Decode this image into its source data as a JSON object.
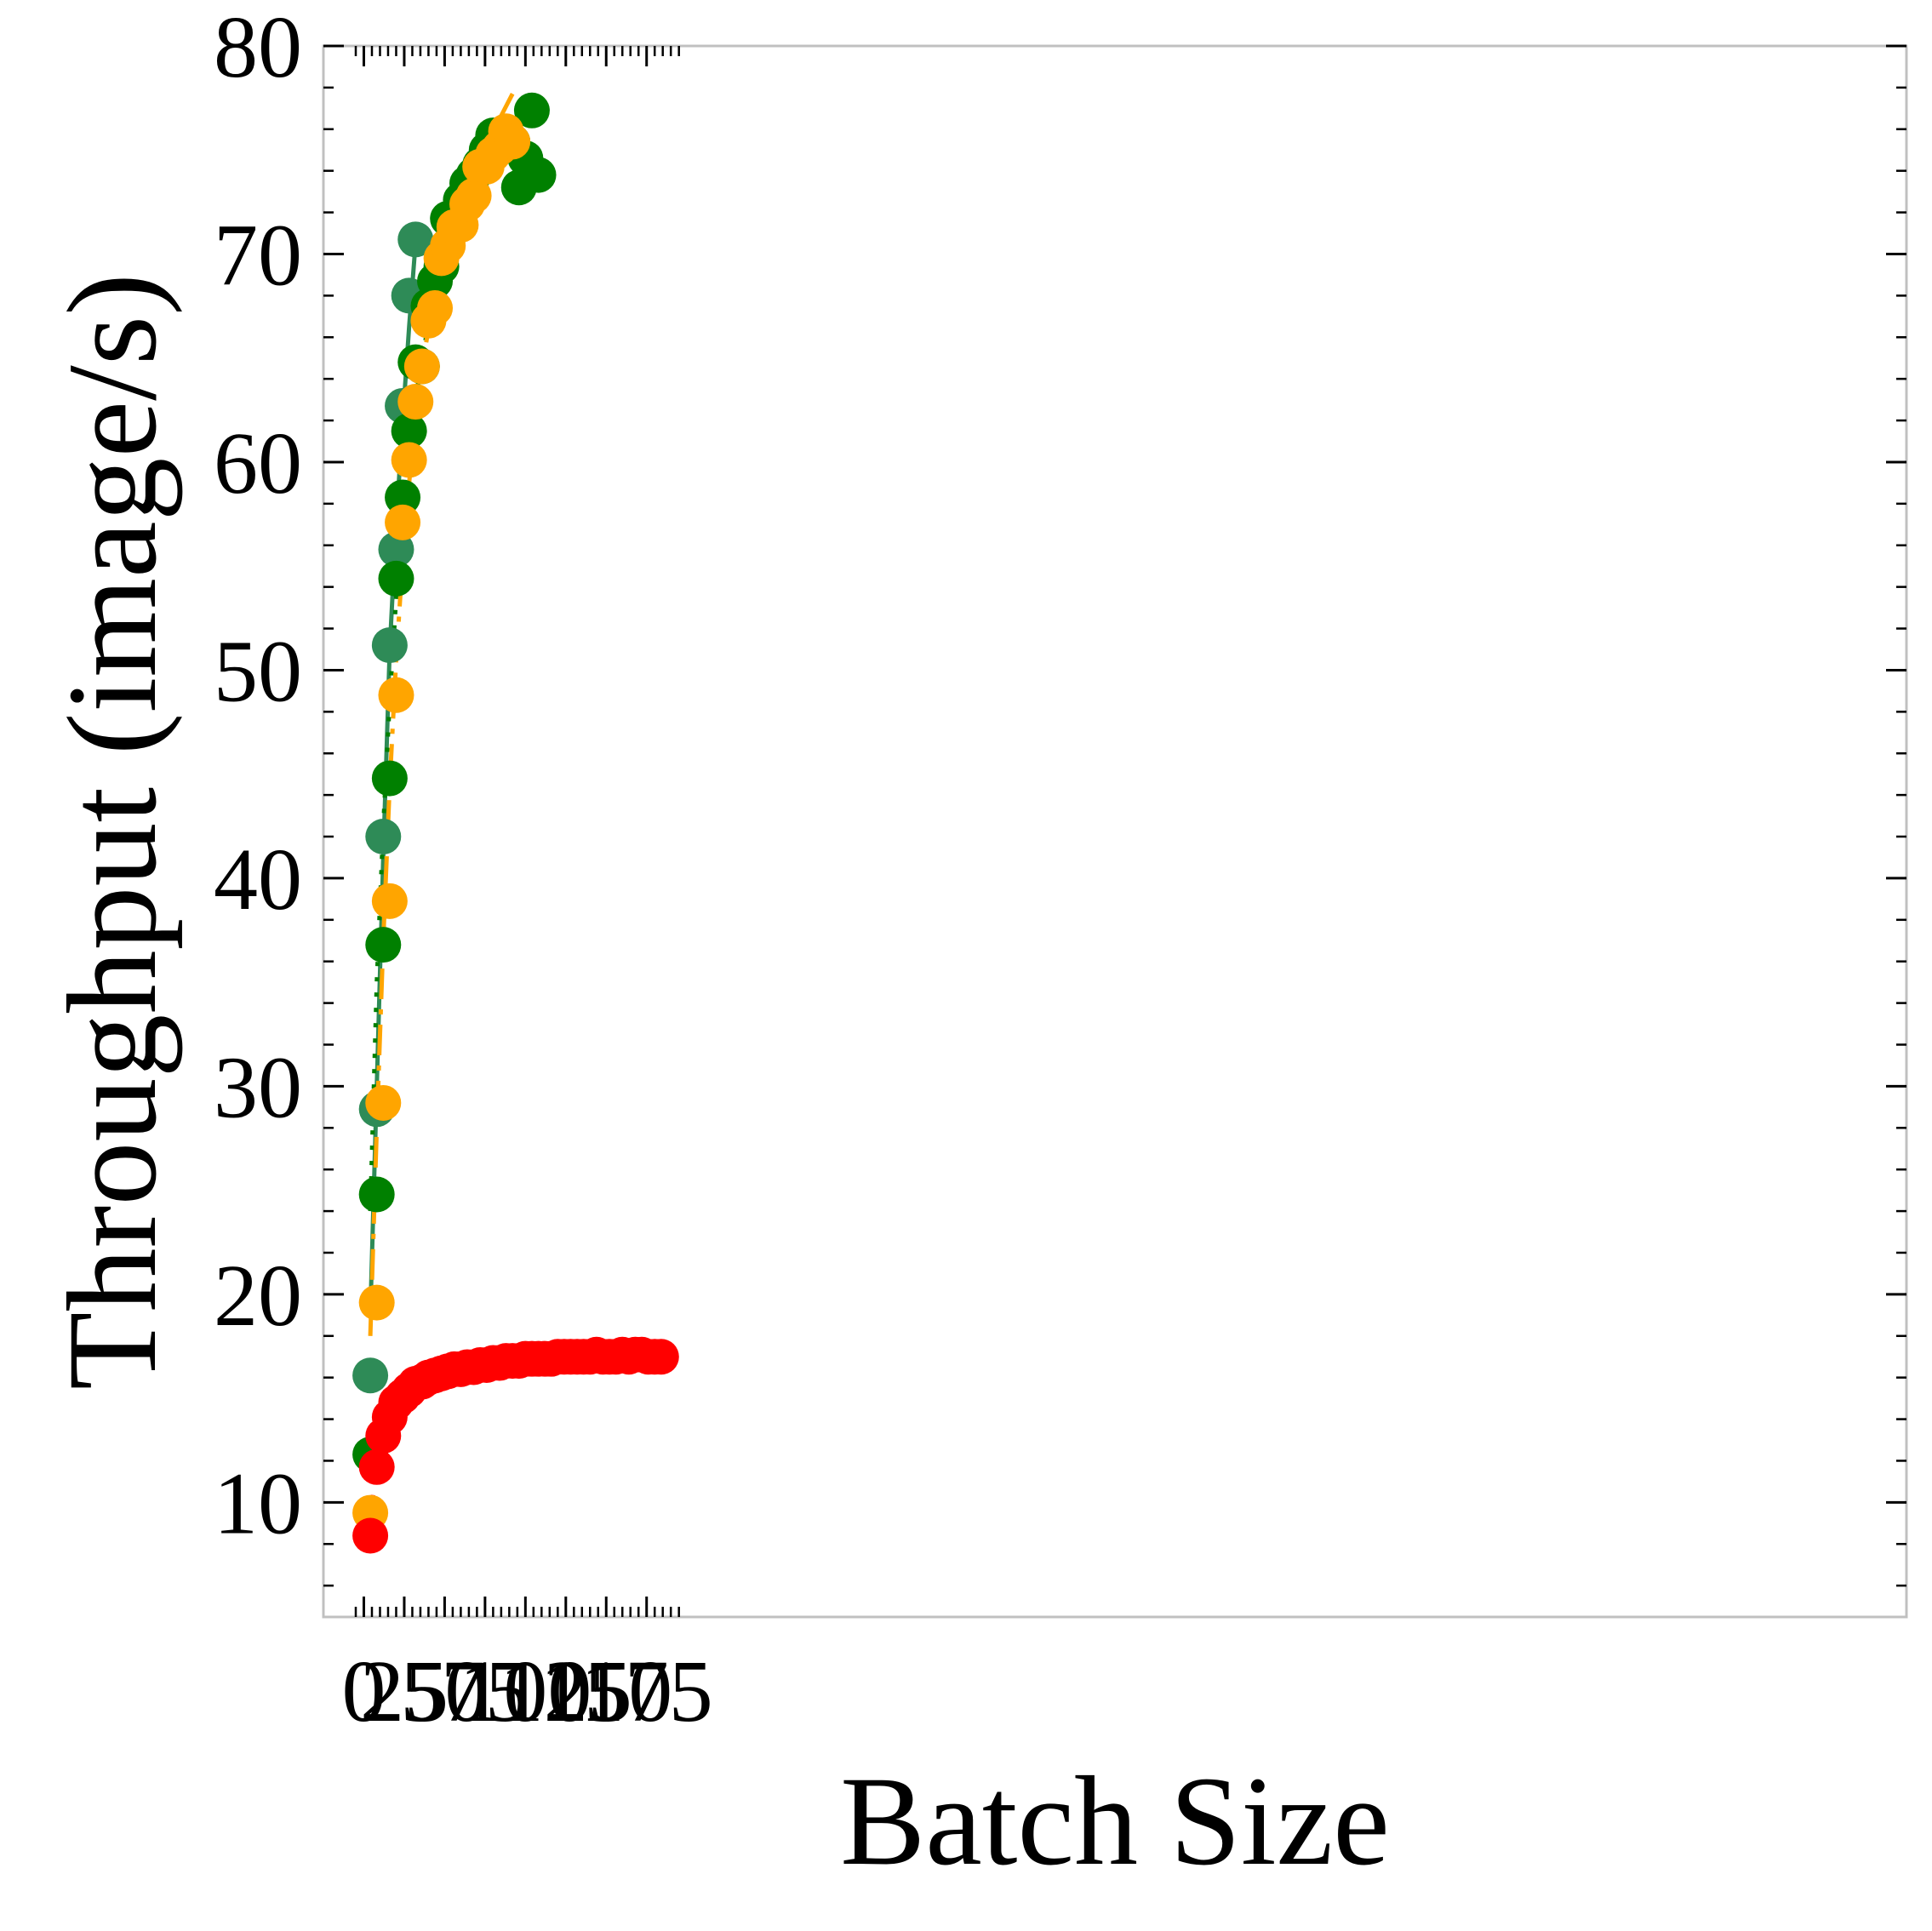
{
  "chart_data": {
    "type": "scatter",
    "title": "",
    "xlabel": "Batch Size",
    "ylabel": "Throughput (image/s)",
    "xlim": [
      -5,
      195
    ],
    "ylim": [
      5,
      81
    ],
    "xticks": [
      0,
      25,
      50,
      75,
      100,
      125,
      150,
      175
    ],
    "yticks": [
      10,
      20,
      30,
      40,
      50,
      60,
      70,
      80
    ],
    "minor_ticks": true,
    "ticks_direction": "in",
    "grid": false,
    "legend": "none",
    "series": [
      {
        "color": "#2e8b57",
        "marker": "circle",
        "points": [
          [
            4,
            16.1
          ],
          [
            8,
            28.9
          ],
          [
            12,
            42
          ],
          [
            16,
            51.2
          ],
          [
            20,
            55.8
          ],
          [
            24,
            62.7
          ],
          [
            28,
            68
          ],
          [
            32,
            70.7
          ]
        ],
        "fit": {
          "style": "solid",
          "x": [
            4,
            8,
            12,
            16,
            20,
            24,
            28,
            32
          ],
          "y": [
            19,
            30,
            41,
            51,
            57,
            62,
            66.5,
            70.5
          ]
        }
      },
      {
        "color": "#008000",
        "marker": "circle",
        "points": [
          [
            4,
            12.3
          ],
          [
            8,
            24.8
          ],
          [
            12,
            36.8
          ],
          [
            16,
            44.8
          ],
          [
            20,
            54.4
          ],
          [
            24,
            58.3
          ],
          [
            28,
            61.5
          ],
          [
            32,
            64.8
          ],
          [
            36,
            64.6
          ],
          [
            40,
            67.5
          ],
          [
            44,
            68.7
          ],
          [
            48,
            69.4
          ],
          [
            52,
            71.7
          ],
          [
            56,
            71.7
          ],
          [
            60,
            72.6
          ],
          [
            64,
            73.4
          ],
          [
            68,
            73.8
          ],
          [
            72,
            74.3
          ],
          [
            76,
            75
          ],
          [
            80,
            75.7
          ],
          [
            84,
            75.1
          ],
          [
            88,
            75.3
          ],
          [
            92,
            75.4
          ],
          [
            96,
            73.2
          ],
          [
            100,
            74.6
          ],
          [
            104,
            76.9
          ],
          [
            108,
            73.8
          ]
        ],
        "fit": {
          "style": "dotted",
          "x": [
            4,
            8,
            12,
            16,
            20,
            24,
            28,
            32,
            36,
            40,
            44,
            48,
            52,
            56,
            60,
            64,
            68,
            72,
            76,
            80,
            84,
            88,
            92,
            96,
            100,
            104,
            108
          ],
          "y": [
            24,
            35,
            42.5,
            48.5,
            53.5,
            57.5,
            60.5,
            63,
            65,
            66.6,
            68,
            69.2,
            70.2,
            71.1,
            71.9,
            72.6,
            73.2,
            73.8,
            74.3,
            74.8,
            75.2,
            75.6,
            76,
            76.3,
            76.6,
            76.9,
            77.1
          ]
        }
      },
      {
        "color": "#ffa500",
        "marker": "circle",
        "points": [
          [
            4,
            9.5
          ],
          [
            8,
            19.6
          ],
          [
            12,
            29.2
          ],
          [
            16,
            38.9
          ],
          [
            20,
            48.8
          ],
          [
            24,
            57.1
          ],
          [
            28,
            60.1
          ],
          [
            32,
            62.9
          ],
          [
            36,
            64.6
          ],
          [
            40,
            66.8
          ],
          [
            44,
            67.4
          ],
          [
            48,
            69.8
          ],
          [
            52,
            70.4
          ],
          [
            56,
            71.3
          ],
          [
            60,
            71.4
          ],
          [
            64,
            72.4
          ],
          [
            68,
            72.8
          ],
          [
            72,
            74.2
          ],
          [
            76,
            74.2
          ],
          [
            80,
            74.8
          ],
          [
            84,
            75.1
          ],
          [
            88,
            75.9
          ],
          [
            92,
            75.4
          ]
        ],
        "fit": {
          "style": "dashdot",
          "x": [
            4,
            8,
            12,
            16,
            20,
            24,
            28,
            32,
            36,
            40,
            44,
            48,
            52,
            56,
            60,
            64,
            68,
            72,
            76,
            80,
            84,
            88,
            92
          ],
          "y": [
            18,
            28,
            37,
            44.5,
            50.5,
            55.3,
            59,
            62,
            64.5,
            66.4,
            68,
            69.3,
            70.5,
            71.5,
            72.5,
            73.3,
            74,
            74.7,
            75.3,
            75.9,
            76.5,
            77.1,
            77.7
          ]
        }
      },
      {
        "color": "#ff0000",
        "marker": "circle",
        "points": [
          [
            4,
            8.4
          ],
          [
            8,
            11.7
          ],
          [
            12,
            13.2
          ],
          [
            16,
            14.1
          ],
          [
            20,
            14.8
          ],
          [
            24,
            15.1
          ],
          [
            28,
            15.4
          ],
          [
            32,
            15.7
          ],
          [
            36,
            15.8
          ],
          [
            40,
            16
          ],
          [
            44,
            16.1
          ],
          [
            48,
            16.2
          ],
          [
            52,
            16.3
          ],
          [
            56,
            16.4
          ],
          [
            60,
            16.4
          ],
          [
            64,
            16.5
          ],
          [
            68,
            16.5
          ],
          [
            72,
            16.6
          ],
          [
            76,
            16.6
          ],
          [
            80,
            16.7
          ],
          [
            84,
            16.7
          ],
          [
            88,
            16.8
          ],
          [
            92,
            16.8
          ],
          [
            96,
            16.8
          ],
          [
            100,
            16.9
          ],
          [
            104,
            16.9
          ],
          [
            108,
            16.9
          ],
          [
            112,
            16.9
          ],
          [
            116,
            16.9
          ],
          [
            120,
            17
          ],
          [
            124,
            17
          ],
          [
            128,
            17
          ],
          [
            132,
            17
          ],
          [
            136,
            17
          ],
          [
            140,
            17
          ],
          [
            144,
            17.1
          ],
          [
            148,
            17
          ],
          [
            152,
            17
          ],
          [
            156,
            17
          ],
          [
            160,
            17.1
          ],
          [
            164,
            17
          ],
          [
            168,
            17.1
          ],
          [
            172,
            17.1
          ],
          [
            176,
            17
          ],
          [
            180,
            17
          ],
          [
            184,
            17
          ]
        ],
        "fit": {
          "style": "dashed",
          "x": [
            4,
            8,
            12
          ],
          "y": [
            9.3,
            11.8,
            13.2
          ]
        }
      }
    ]
  }
}
